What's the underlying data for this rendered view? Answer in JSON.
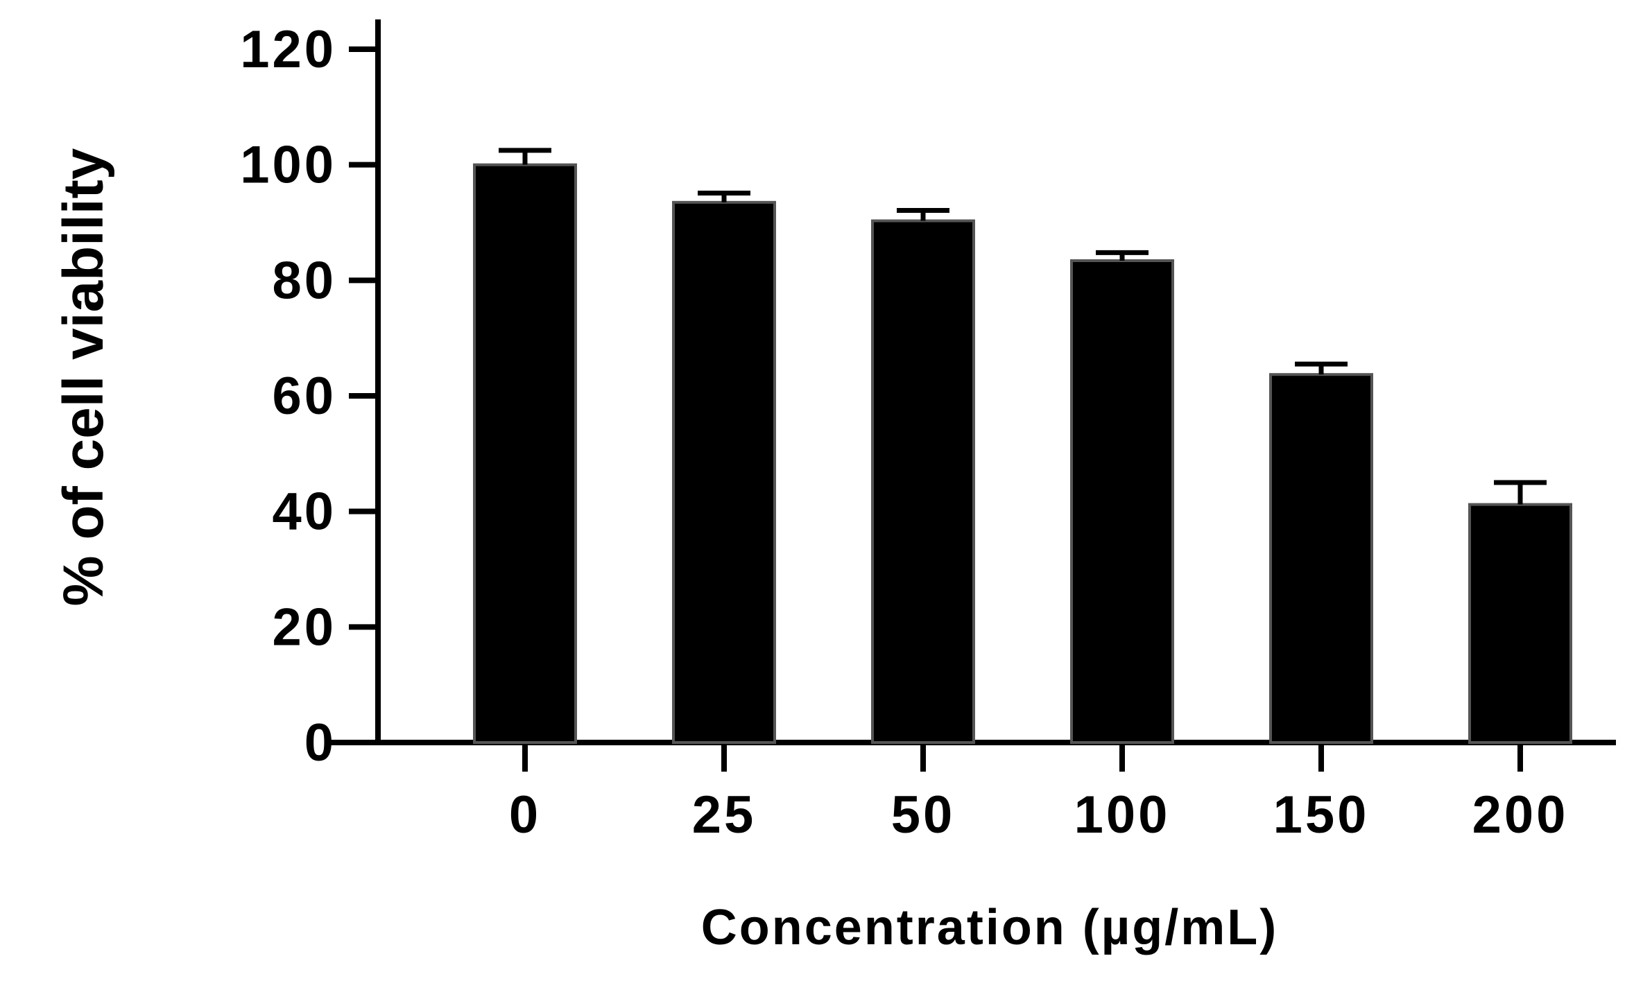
{
  "chart_data": {
    "type": "bar",
    "title": "",
    "xlabel": "Concentration (µg/mL)",
    "ylabel": "% of cell viability",
    "categories": [
      "0",
      "25",
      "50",
      "100",
      "150",
      "200"
    ],
    "values": [
      100,
      93.5,
      90.3,
      83.4,
      63.7,
      41.2
    ],
    "error": [
      2.5,
      1.6,
      1.8,
      1.4,
      1.8,
      3.8
    ],
    "ylim": [
      0,
      120
    ],
    "yticks": [
      0,
      20,
      40,
      60,
      80,
      100,
      120
    ],
    "grid": false,
    "legend": "none",
    "bar_color": "#000000",
    "axis_color": "#000000"
  }
}
